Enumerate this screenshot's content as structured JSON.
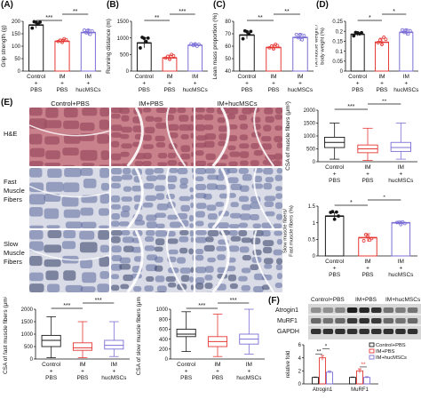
{
  "colors": {
    "control": "#1a1a1a",
    "im": "#e53935",
    "huc": "#7b6fd6",
    "he_bg": "#c9818c",
    "he_fiber": "#9c4f62",
    "ihc_bg": "#d9dbe6",
    "ihc_fiber": "#5c6a9e"
  },
  "panel_letters": {
    "a": "(A)",
    "b": "(B)",
    "c": "(C)",
    "d": "(D)",
    "e": "(E)",
    "f": "(F)"
  },
  "groups": {
    "control": [
      "Control",
      "+",
      "PBS"
    ],
    "im": [
      "IM",
      "+",
      "PBS"
    ],
    "huc": [
      "IM",
      "+",
      "hucMSCs"
    ]
  },
  "micrographs": {
    "columns": [
      "Control+PBS",
      "IM+PBS",
      "IM+hucMSCs"
    ],
    "rows": [
      [
        "H&E"
      ],
      [
        "Fast",
        "Muscle",
        "Fibers"
      ],
      [
        "Slow",
        "Muscle",
        "Fibers"
      ]
    ]
  },
  "western": {
    "header": [
      "Control+PBS",
      "IM+PBS",
      "IM+hucMSCs"
    ],
    "rows": [
      "Atrogin1",
      "MuRF1",
      "GAPDH"
    ]
  },
  "chart_data": [
    {
      "id": "A",
      "type": "bar",
      "ylabel": "Grip strength (g)",
      "categories": [
        "Control+PBS",
        "IM+PBS",
        "IM+hucMSCs"
      ],
      "values": [
        185,
        120,
        155
      ],
      "errors": [
        12,
        8,
        12
      ],
      "ylim": [
        0,
        200
      ],
      "yticks": [
        0,
        50,
        100,
        150,
        200
      ],
      "significance": [
        {
          "from": 0,
          "to": 1,
          "label": "***"
        },
        {
          "from": 1,
          "to": 2,
          "label": "**"
        }
      ]
    },
    {
      "id": "B",
      "type": "bar",
      "ylabel": "Running distance (m)",
      "categories": [
        "Control+PBS",
        "IM+PBS",
        "IM+hucMSCs"
      ],
      "values": [
        850,
        400,
        780
      ],
      "errors": [
        150,
        80,
        50
      ],
      "ylim": [
        0,
        1500
      ],
      "yticks": [
        0,
        500,
        1000,
        1500
      ],
      "significance": [
        {
          "from": 0,
          "to": 1,
          "label": "**"
        },
        {
          "from": 1,
          "to": 2,
          "label": "***"
        }
      ]
    },
    {
      "id": "C",
      "type": "bar",
      "ylabel": "Lean mass proportion (%)",
      "categories": [
        "Control+PBS",
        "IM+PBS",
        "IM+hucMSCs"
      ],
      "values": [
        69,
        59,
        67
      ],
      "errors": [
        3,
        2,
        3
      ],
      "ylim": [
        40,
        80
      ],
      "yticks": [
        40,
        50,
        60,
        70,
        80
      ],
      "significance": [
        {
          "from": 0,
          "to": 1,
          "label": "**"
        },
        {
          "from": 1,
          "to": 2,
          "label": "**"
        }
      ]
    },
    {
      "id": "D",
      "type": "bar",
      "ylabel": "TA muscle weight / body weight (%)",
      "categories": [
        "Control+PBS",
        "IM+PBS",
        "IM+hucMSCs"
      ],
      "values": [
        0.185,
        0.145,
        0.195
      ],
      "errors": [
        0.008,
        0.02,
        0.015
      ],
      "ylim": [
        0.0,
        0.25
      ],
      "yticks": [
        0.0,
        0.05,
        0.1,
        0.15,
        0.2,
        0.25
      ],
      "significance": [
        {
          "from": 0,
          "to": 1,
          "label": "*"
        },
        {
          "from": 1,
          "to": 2,
          "label": "*"
        }
      ]
    },
    {
      "id": "E1",
      "type": "box",
      "ylabel": "CSA of muscle fibers (μm²)",
      "categories": [
        "Control+PBS",
        "IM+PBS",
        "IM+hucMSCs"
      ],
      "box": [
        {
          "min": 100,
          "q1": 550,
          "median": 750,
          "q3": 950,
          "max": 1500
        },
        {
          "min": 50,
          "q1": 350,
          "median": 500,
          "q3": 650,
          "max": 1300
        },
        {
          "min": 100,
          "q1": 400,
          "median": 550,
          "q3": 750,
          "max": 1500
        }
      ],
      "ylim": [
        0,
        2000
      ],
      "yticks": [
        0,
        500,
        1000,
        1500,
        2000
      ],
      "significance": [
        {
          "from": 0,
          "to": 1,
          "label": "***"
        },
        {
          "from": 1,
          "to": 2,
          "label": "**"
        }
      ]
    },
    {
      "id": "E2",
      "type": "bar",
      "ylabel": "Slow muscle fibers/ Fast muscle fibers (%)",
      "categories": [
        "Control+PBS",
        "IM+PBS",
        "IM+hucMSCs"
      ],
      "values": [
        1.2,
        0.55,
        1.0
      ],
      "errors": [
        0.1,
        0.12,
        0.05
      ],
      "ylim": [
        0.0,
        1.5
      ],
      "yticks": [
        0.0,
        0.5,
        1.0,
        1.5
      ],
      "significance": [
        {
          "from": 0,
          "to": 1,
          "label": "*"
        },
        {
          "from": 1,
          "to": 2,
          "label": "*"
        }
      ]
    },
    {
      "id": "E3",
      "type": "box",
      "ylabel": "CSA of fast muscle fibers (μm²)",
      "categories": [
        "Control+PBS",
        "IM+PBS",
        "IM+hucMSCs"
      ],
      "box": [
        {
          "min": 50,
          "q1": 500,
          "median": 750,
          "q3": 950,
          "max": 1700
        },
        {
          "min": 50,
          "q1": 350,
          "median": 450,
          "q3": 650,
          "max": 1500
        },
        {
          "min": 100,
          "q1": 400,
          "median": 550,
          "q3": 750,
          "max": 1500
        }
      ],
      "ylim": [
        0,
        2000
      ],
      "yticks": [
        0,
        500,
        1000,
        1500,
        2000
      ],
      "significance": [
        {
          "from": 0,
          "to": 1,
          "label": "***"
        },
        {
          "from": 1,
          "to": 2,
          "label": "***"
        }
      ]
    },
    {
      "id": "E4",
      "type": "box",
      "ylabel": "CSA of slow muscle fibers (μm²)",
      "categories": [
        "Control+PBS",
        "IM+PBS",
        "IM+hucMSCs"
      ],
      "box": [
        {
          "min": 150,
          "q1": 450,
          "median": 500,
          "q3": 600,
          "max": 950
        },
        {
          "min": 50,
          "q1": 250,
          "median": 350,
          "q3": 450,
          "max": 900
        },
        {
          "min": 100,
          "q1": 300,
          "median": 400,
          "q3": 500,
          "max": 1000
        }
      ],
      "ylim": [
        0,
        1000
      ],
      "yticks": [
        0,
        200,
        400,
        600,
        800,
        1000
      ],
      "significance": [
        {
          "from": 0,
          "to": 1,
          "label": "***"
        },
        {
          "from": 1,
          "to": 2,
          "label": "***"
        }
      ]
    },
    {
      "id": "F",
      "type": "bar",
      "ylabel": "relative fold",
      "categories": [
        "Atrogin1",
        "MuRF1"
      ],
      "series": [
        {
          "name": "Control+PBS",
          "values": [
            1.0,
            1.0
          ],
          "errors": [
            0.05,
            0.05
          ]
        },
        {
          "name": "IM+PBS",
          "values": [
            4.0,
            2.0
          ],
          "errors": [
            0.35,
            0.3
          ]
        },
        {
          "name": "IM+hucMSCs",
          "values": [
            1.8,
            1.0
          ],
          "errors": [
            0.15,
            0.1
          ]
        }
      ],
      "ylim": [
        0,
        6
      ],
      "yticks": [
        0,
        2,
        4,
        6
      ],
      "legend": "top-right",
      "significance": [
        {
          "cat": 0,
          "from": 0,
          "to": 1,
          "label": "**"
        },
        {
          "cat": 0,
          "from": 1,
          "to": 2,
          "label": "*"
        },
        {
          "cat": 1,
          "from": 1,
          "to": 2,
          "label": "**"
        }
      ]
    }
  ]
}
